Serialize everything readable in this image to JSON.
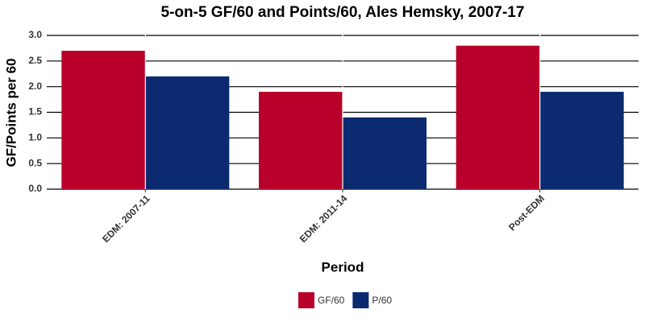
{
  "chart_data": {
    "type": "bar",
    "title": "5-on-5 GF/60 and Points/60, Ales Hemsky, 2007-17",
    "x_label": "Period",
    "y_label": "GF/Points per 60",
    "categories": [
      "EDM: 2007-11",
      "EDM: 2011-14",
      "Post-EDM"
    ],
    "series": [
      {
        "name": "GF/60",
        "color": "#b8002a",
        "values": [
          2.7,
          1.9,
          2.8
        ]
      },
      {
        "name": "P/60",
        "color": "#0b2a6f",
        "values": [
          2.2,
          1.4,
          1.9
        ]
      }
    ],
    "ylim": [
      0,
      3.0
    ],
    "yticks": [
      {
        "value": 0,
        "label": "0.0"
      },
      0.5,
      {
        "value": 1,
        "label": "1.0"
      },
      1.5,
      {
        "value": 2,
        "label": "2.0"
      },
      2.5,
      {
        "value": 3,
        "label": "3.0"
      }
    ],
    "grid": true,
    "legend": "bottom"
  }
}
